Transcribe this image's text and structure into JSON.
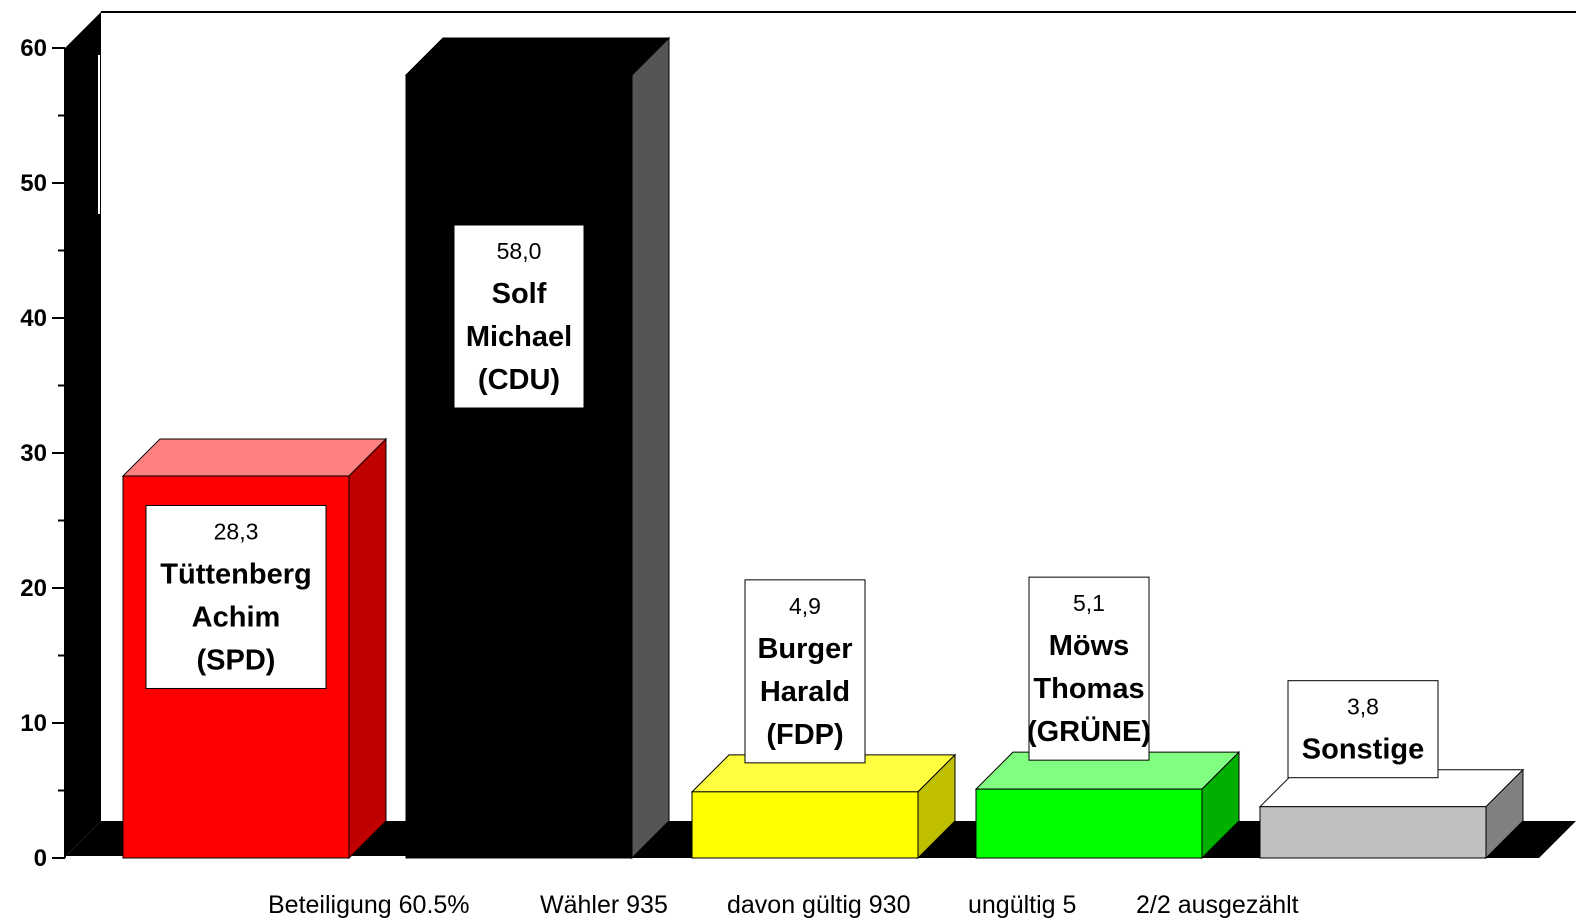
{
  "chart_data": {
    "type": "bar",
    "categories": [
      "Tüttenberg Achim (SPD)",
      "Solf Michael (CDU)",
      "Burger Harald (FDP)",
      "Möws Thomas (GRÜNE)",
      "Sonstige"
    ],
    "values": [
      28.3,
      58.0,
      4.9,
      5.1,
      3.8
    ],
    "ylim": [
      0,
      60
    ],
    "yticks": [
      "0",
      "10",
      "20",
      "30",
      "40",
      "50",
      "60"
    ],
    "grid": false,
    "legend": "none",
    "bars": [
      {
        "value": 28.3,
        "value_label": "28,3",
        "name_lines": [
          "Tüttenberg",
          "Achim",
          "(SPD)"
        ],
        "front_color": "#ff0000",
        "top_color": "#ff8080",
        "side_color": "#bf0000"
      },
      {
        "value": 58.0,
        "value_label": "58,0",
        "name_lines": [
          "Solf",
          "Michael",
          "(CDU)"
        ],
        "front_color": "#000000",
        "top_color": "#000000",
        "side_color": "#555555"
      },
      {
        "value": 4.9,
        "value_label": "4,9",
        "name_lines": [
          "Burger",
          "Harald",
          "(FDP)"
        ],
        "front_color": "#ffff00",
        "top_color": "#ffff40",
        "side_color": "#bfbf00"
      },
      {
        "value": 5.1,
        "value_label": "5,1",
        "name_lines": [
          "Möws",
          "Thomas",
          "(GRÜNE)"
        ],
        "front_color": "#00ff00",
        "top_color": "#80ff80",
        "side_color": "#00b000"
      },
      {
        "value": 3.8,
        "value_label": "3,8",
        "name_lines": [
          "Sonstige"
        ],
        "front_color": "#c0c0c0",
        "top_color": "#ffffff",
        "side_color": "#808080"
      }
    ]
  },
  "footer": {
    "beteiligung": "Beteiligung 60.5%",
    "waehler": "Wähler 935",
    "gueltig": "davon gültig 930",
    "ungueltig": "ungültig 5",
    "ausgezaehlt": "2/2 ausgezählt"
  }
}
